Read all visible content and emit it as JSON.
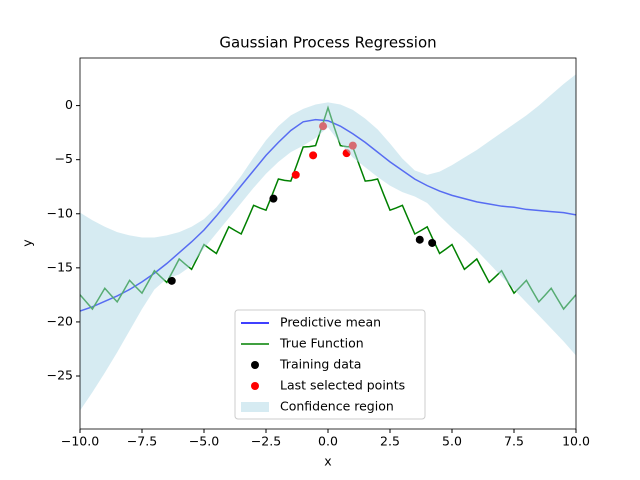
{
  "chart_data": {
    "type": "line",
    "title": "Gaussian Process Regression",
    "x_label": "x",
    "y_label": "y",
    "xlim": [
      -10,
      10
    ],
    "ylim": [
      -29.9,
      4.4
    ],
    "xticks": [
      {
        "value": -10,
        "label": "−10.0"
      },
      {
        "value": -7.5,
        "label": "−7.5"
      },
      {
        "value": -5,
        "label": "−5.0"
      },
      {
        "value": -2.5,
        "label": "−2.5"
      },
      {
        "value": 0,
        "label": "0.0"
      },
      {
        "value": 2.5,
        "label": "2.5"
      },
      {
        "value": 5,
        "label": "5.0"
      },
      {
        "value": 7.5,
        "label": "7.5"
      },
      {
        "value": 10,
        "label": "10.0"
      }
    ],
    "yticks": [
      0,
      {
        "value": -5,
        "label": "−5"
      },
      {
        "value": -10,
        "label": "−10"
      },
      {
        "value": -15,
        "label": "−15"
      },
      {
        "value": -20,
        "label": "−20"
      },
      {
        "value": -25,
        "label": "−25"
      }
    ],
    "legend": "lower center",
    "series": [
      {
        "name": "Predictive mean",
        "kind": "line",
        "color": "#0000ff",
        "x": [
          -10,
          -9.5,
          -9,
          -8.5,
          -8,
          -7.5,
          -7,
          -6.5,
          -6,
          -5.5,
          -5,
          -4.5,
          -4,
          -3.5,
          -3,
          -2.5,
          -2,
          -1.5,
          -1,
          -0.5,
          0,
          0.5,
          1,
          1.5,
          2,
          2.5,
          3,
          3.5,
          4,
          4.5,
          5,
          5.5,
          6,
          6.5,
          7,
          7.5,
          8,
          8.5,
          9,
          9.5,
          10
        ],
        "values": [
          -19.0,
          -18.6,
          -18.1,
          -17.6,
          -17.0,
          -16.3,
          -15.5,
          -14.6,
          -13.6,
          -12.6,
          -11.5,
          -10.2,
          -8.8,
          -7.4,
          -6.0,
          -4.6,
          -3.4,
          -2.3,
          -1.5,
          -1.3,
          -1.4,
          -1.9,
          -2.6,
          -3.4,
          -4.3,
          -5.2,
          -6.0,
          -6.8,
          -7.4,
          -7.9,
          -8.3,
          -8.6,
          -8.9,
          -9.1,
          -9.3,
          -9.4,
          -9.6,
          -9.7,
          -9.8,
          -9.9,
          -10.1
        ]
      },
      {
        "name": "True Function",
        "kind": "line",
        "color": "#008000",
        "x": [
          -10,
          -9.75,
          -9.5,
          -9.25,
          -9,
          -8.75,
          -8.5,
          -8.25,
          -8,
          -7.75,
          -7.5,
          -7.25,
          -7,
          -6.75,
          -6.5,
          -6.25,
          -6,
          -5.75,
          -5.5,
          -5.25,
          -5,
          -4.75,
          -4.5,
          -4.25,
          -4,
          -3.75,
          -3.5,
          -3.25,
          -3,
          -2.75,
          -2.5,
          -2.25,
          -2,
          -1.75,
          -1.5,
          -1.25,
          -1,
          -0.75,
          -0.5,
          -0.25,
          0,
          0.25,
          0.5,
          0.75,
          1,
          1.25,
          1.5,
          1.75,
          2,
          2.25,
          2.5,
          2.75,
          3,
          3.25,
          3.5,
          3.75,
          4,
          4.25,
          4.5,
          4.75,
          5,
          5.25,
          5.5,
          5.75,
          6,
          6.25,
          6.5,
          6.75,
          7,
          7.25,
          7.5,
          7.75,
          8,
          8.25,
          8.5,
          8.75,
          9,
          9.25,
          9.5,
          9.75,
          10
        ],
        "values": [
          -17.49,
          -18.15,
          -18.81,
          -17.86,
          -16.89,
          -17.53,
          -18.15,
          -17.16,
          -16.16,
          -16.76,
          -17.34,
          -16.31,
          -15.27,
          -15.82,
          -16.35,
          -15.27,
          -14.18,
          -14.67,
          -15.14,
          -14.0,
          -12.84,
          -13.27,
          -13.67,
          -12.45,
          -11.21,
          -11.55,
          -11.87,
          -10.56,
          -9.22,
          -9.46,
          -9.67,
          -8.25,
          -6.79,
          -6.91,
          -6.98,
          -5.42,
          -3.83,
          -3.79,
          -3.7,
          -1.98,
          -0.2,
          -1.98,
          -3.7,
          -3.79,
          -3.83,
          -5.42,
          -6.98,
          -6.91,
          -6.79,
          -8.25,
          -9.67,
          -9.46,
          -9.22,
          -10.56,
          -11.87,
          -11.55,
          -11.21,
          -12.45,
          -13.67,
          -13.27,
          -12.84,
          -14.0,
          -15.14,
          -14.67,
          -14.18,
          -15.27,
          -16.35,
          -15.82,
          -15.27,
          -16.31,
          -17.34,
          -16.76,
          -16.16,
          -17.16,
          -18.15,
          -17.53,
          -16.89,
          -17.86,
          -18.81,
          -18.15,
          -17.49
        ]
      },
      {
        "name": "Training data",
        "kind": "scatter",
        "color": "#000000",
        "x": [
          -6.3,
          -2.2,
          3.7,
          4.2
        ],
        "values": [
          -16.2,
          -8.6,
          -12.4,
          -12.7
        ]
      },
      {
        "name": "Last selected points",
        "kind": "scatter",
        "color": "#ff0000",
        "x": [
          -1.3,
          -0.6,
          -0.2,
          0.75,
          1.0
        ],
        "values": [
          -6.4,
          -4.6,
          -1.9,
          -4.4,
          -3.7
        ]
      },
      {
        "name": "Confidence region",
        "kind": "band",
        "color": "#add8e6",
        "x": [
          -10,
          -9.5,
          -9,
          -8.5,
          -8,
          -7.5,
          -7,
          -6.5,
          -6,
          -5.5,
          -5,
          -4.5,
          -4,
          -3.5,
          -3,
          -2.5,
          -2,
          -1.5,
          -1,
          -0.5,
          0,
          0.5,
          1,
          1.5,
          2,
          2.5,
          3,
          3.5,
          4,
          4.5,
          5,
          5.5,
          6,
          6.5,
          7,
          7.5,
          8,
          8.5,
          9,
          9.5,
          10
        ],
        "upper": [
          -9.9,
          -10.6,
          -11.2,
          -11.7,
          -12.0,
          -12.2,
          -12.2,
          -12.0,
          -11.7,
          -11.2,
          -10.5,
          -9.4,
          -8.0,
          -6.5,
          -4.8,
          -3.2,
          -1.9,
          -0.9,
          -0.3,
          0.1,
          0.3,
          0.1,
          -0.4,
          -1.2,
          -2.2,
          -3.5,
          -4.9,
          -6.0,
          -6.4,
          -6.1,
          -5.5,
          -4.8,
          -4.1,
          -3.3,
          -2.5,
          -1.7,
          -0.9,
          0.0,
          1.0,
          2.0,
          2.9
        ],
        "lower": [
          -28.2,
          -26.5,
          -24.7,
          -22.8,
          -20.8,
          -18.8,
          -17.0,
          -16.0,
          -15.6,
          -14.8,
          -13.2,
          -11.8,
          -10.4,
          -9.0,
          -7.6,
          -6.3,
          -5.2,
          -4.3,
          -3.7,
          -3.0,
          -2.0,
          -3.5,
          -4.8,
          -5.7,
          -6.6,
          -7.4,
          -8.0,
          -8.4,
          -9.0,
          -10.2,
          -11.3,
          -12.3,
          -13.4,
          -14.6,
          -15.8,
          -17.0,
          -18.2,
          -19.4,
          -20.6,
          -21.8,
          -23.1
        ]
      }
    ]
  }
}
